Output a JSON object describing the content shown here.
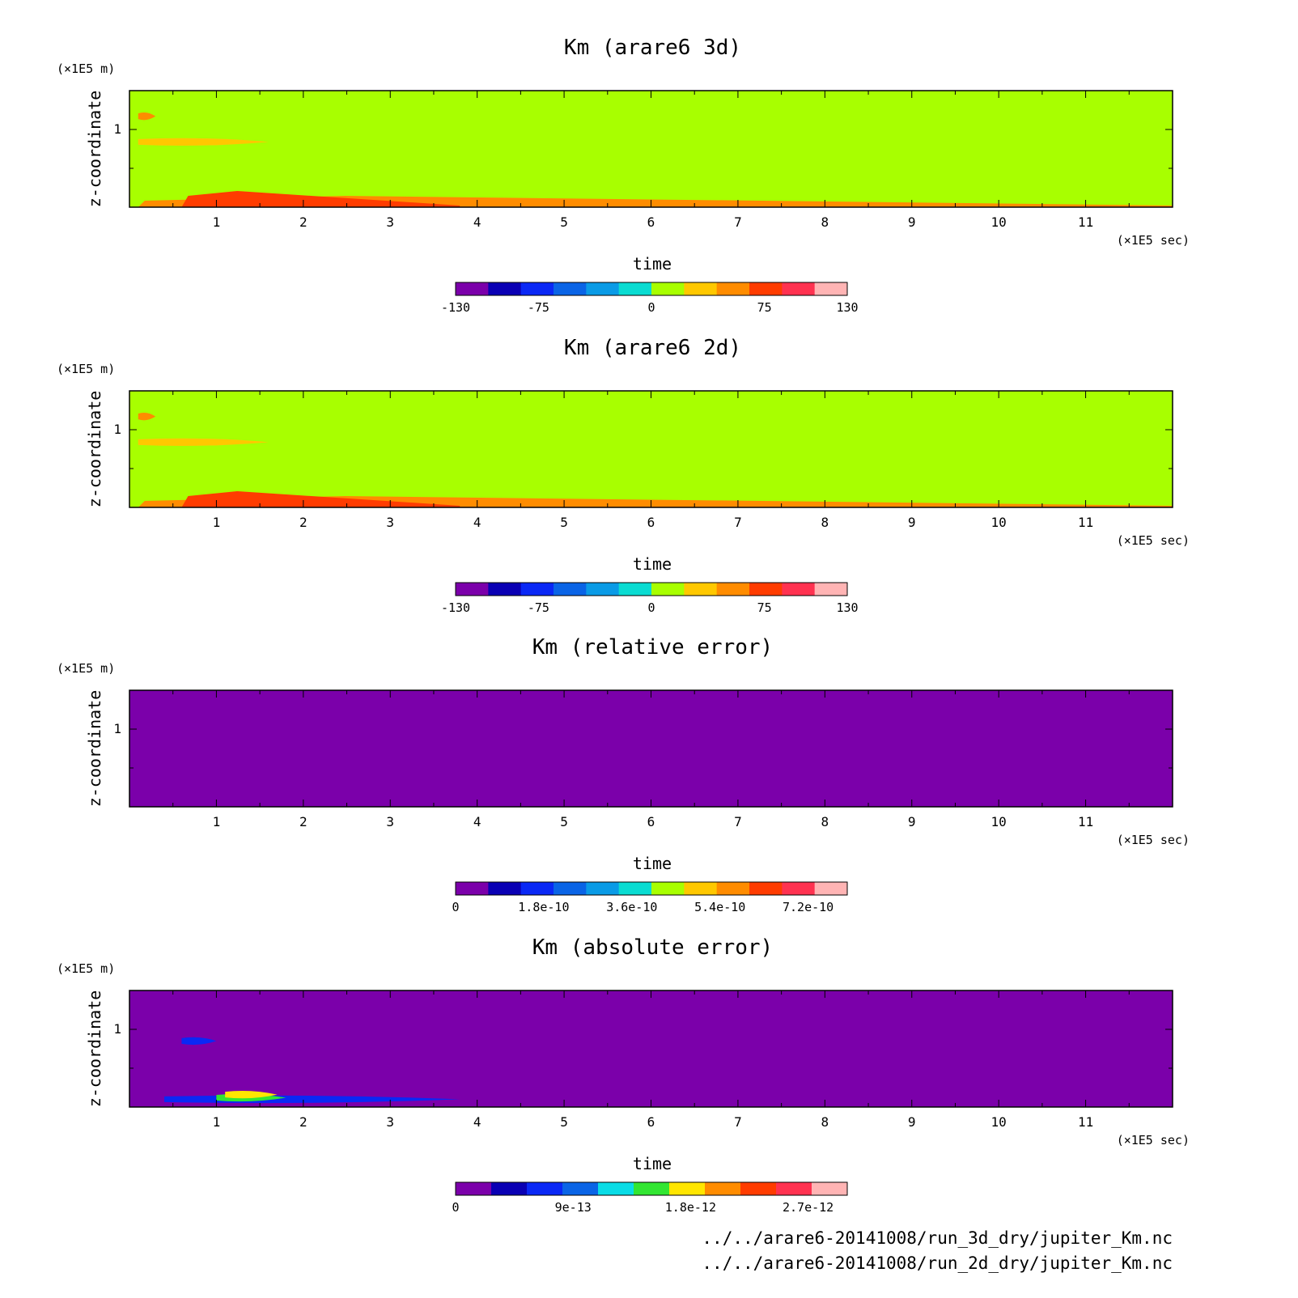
{
  "chart_data": [
    {
      "type": "heatmap",
      "title": "Km (arare6 3d)",
      "xlabel": "time",
      "ylabel": "z-coordinate",
      "x_unit": "(×1E5 sec)",
      "y_unit": "(×1E5 m)",
      "xlim": [
        0,
        12
      ],
      "ylim": [
        0,
        1.5
      ],
      "x_ticks": [
        "1",
        "2",
        "3",
        "4",
        "5",
        "6",
        "7",
        "8",
        "9",
        "10",
        "11"
      ],
      "y_ticks": [
        "1"
      ],
      "colorbar": {
        "range": [
          -130,
          130
        ],
        "labels": [
          "-130",
          "-75",
          "0",
          "75",
          "130"
        ],
        "colors": [
          "#7b00aa",
          "#0a00b4",
          "#0a28f5",
          "#0a64e6",
          "#0a9be6",
          "#0adcd2",
          "#a8ff00",
          "#ffc800",
          "#ff8c00",
          "#ff3c00",
          "#ff3250",
          "#ffb4b4"
        ]
      },
      "background_color": "#a8ff00",
      "features": [
        {
          "x_start": 0.1,
          "x_end": 1.6,
          "z": 0.84,
          "color": "#ffc800"
        },
        {
          "x_start": 0.1,
          "x_end": 0.3,
          "z": 1.17,
          "color": "#ff8c00"
        },
        {
          "x_start": 0.1,
          "x_end": 12.0,
          "z": 0.0,
          "color": "#ff8c00"
        },
        {
          "x_start": 0.6,
          "x_end": 3.8,
          "z": 0.0,
          "color": "#ff3c00"
        }
      ]
    },
    {
      "type": "heatmap",
      "title": "Km (arare6 2d)",
      "xlabel": "time",
      "ylabel": "z-coordinate",
      "x_unit": "(×1E5 sec)",
      "y_unit": "(×1E5 m)",
      "xlim": [
        0,
        12
      ],
      "ylim": [
        0,
        1.5
      ],
      "x_ticks": [
        "1",
        "2",
        "3",
        "4",
        "5",
        "6",
        "7",
        "8",
        "9",
        "10",
        "11"
      ],
      "y_ticks": [
        "1"
      ],
      "colorbar": {
        "range": [
          -130,
          130
        ],
        "labels": [
          "-130",
          "-75",
          "0",
          "75",
          "130"
        ],
        "colors": [
          "#7b00aa",
          "#0a00b4",
          "#0a28f5",
          "#0a64e6",
          "#0a9be6",
          "#0adcd2",
          "#a8ff00",
          "#ffc800",
          "#ff8c00",
          "#ff3c00",
          "#ff3250",
          "#ffb4b4"
        ]
      },
      "background_color": "#a8ff00",
      "features": [
        {
          "x_start": 0.1,
          "x_end": 1.6,
          "z": 0.84,
          "color": "#ffc800"
        },
        {
          "x_start": 0.1,
          "x_end": 0.3,
          "z": 1.17,
          "color": "#ff8c00"
        },
        {
          "x_start": 0.1,
          "x_end": 12.0,
          "z": 0.0,
          "color": "#ff8c00"
        },
        {
          "x_start": 0.6,
          "x_end": 3.8,
          "z": 0.0,
          "color": "#ff3c00"
        }
      ]
    },
    {
      "type": "heatmap",
      "title": "Km (relative error)",
      "xlabel": "time",
      "ylabel": "z-coordinate",
      "x_unit": "(×1E5 sec)",
      "y_unit": "(×1E5 m)",
      "xlim": [
        0,
        12
      ],
      "ylim": [
        0,
        1.5
      ],
      "x_ticks": [
        "1",
        "2",
        "3",
        "4",
        "5",
        "6",
        "7",
        "8",
        "9",
        "10",
        "11"
      ],
      "y_ticks": [
        "1"
      ],
      "colorbar": {
        "range": [
          0,
          8e-10
        ],
        "labels": [
          "0",
          "1.8e-10",
          "3.6e-10",
          "5.4e-10",
          "7.2e-10"
        ],
        "colors": [
          "#7b00aa",
          "#0a00b4",
          "#0a28f5",
          "#0a64e6",
          "#0a9be6",
          "#0adcd2",
          "#a8ff00",
          "#ffc800",
          "#ff8c00",
          "#ff3c00",
          "#ff3250",
          "#ffb4b4"
        ]
      },
      "background_color": "#7b00aa",
      "features": []
    },
    {
      "type": "heatmap",
      "title": "Km (absolute error)",
      "xlabel": "time",
      "ylabel": "z-coordinate",
      "x_unit": "(×1E5 sec)",
      "y_unit": "(×1E5 m)",
      "xlim": [
        0,
        12
      ],
      "ylim": [
        0,
        1.5
      ],
      "x_ticks": [
        "1",
        "2",
        "3",
        "4",
        "5",
        "6",
        "7",
        "8",
        "9",
        "10",
        "11"
      ],
      "y_ticks": [
        "1"
      ],
      "colorbar": {
        "range": [
          0,
          3e-12
        ],
        "labels": [
          "0",
          "9e-13",
          "1.8e-12",
          "2.7e-12"
        ],
        "colors": [
          "#7b00aa",
          "#0a00b4",
          "#0a28f5",
          "#0a64e6",
          "#0adce6",
          "#32e632",
          "#ffe600",
          "#ff8c00",
          "#ff3c00",
          "#ff3250",
          "#ffb4b4"
        ]
      },
      "background_color": "#7b00aa",
      "features": [
        {
          "x_start": 0.4,
          "x_end": 3.8,
          "z": 0.1,
          "color": "#0a28f5"
        },
        {
          "x_start": 1.0,
          "x_end": 1.8,
          "z": 0.12,
          "color": "#32e632"
        },
        {
          "x_start": 1.1,
          "x_end": 1.7,
          "z": 0.16,
          "color": "#ffe600"
        },
        {
          "x_start": 0.6,
          "x_end": 1.0,
          "z": 0.85,
          "color": "#0a28f5"
        }
      ]
    }
  ],
  "footer": {
    "lines": [
      "../../arare6-20141008/run_3d_dry/jupiter_Km.nc",
      "../../arare6-20141008/run_2d_dry/jupiter_Km.nc"
    ]
  }
}
